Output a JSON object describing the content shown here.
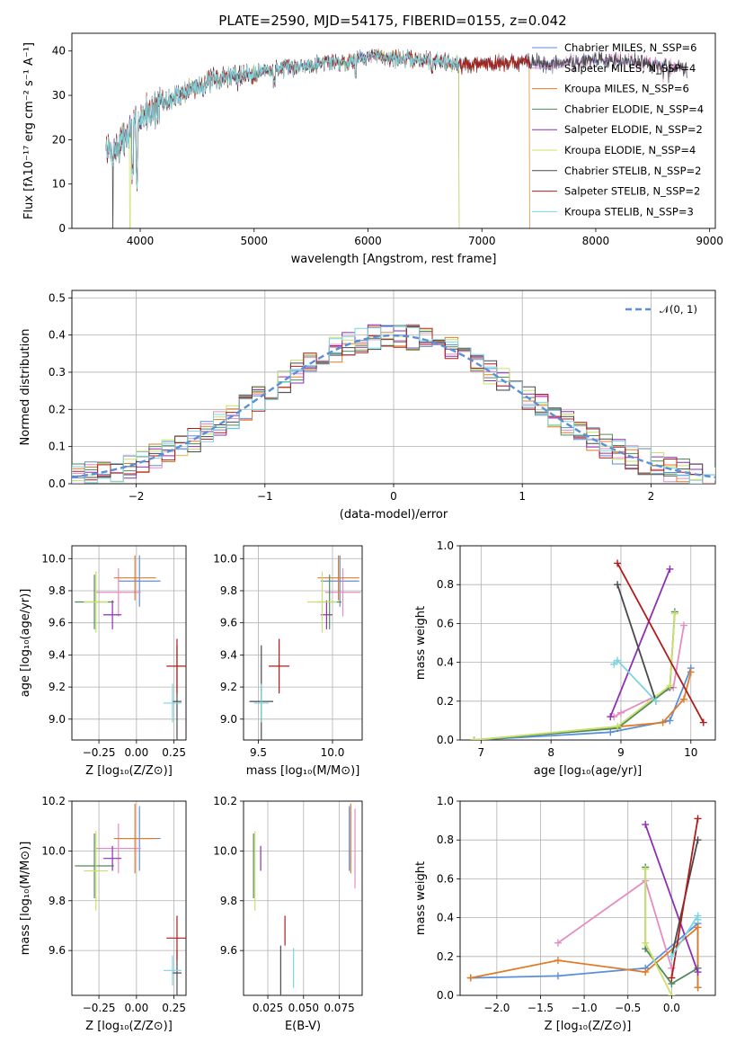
{
  "title": "PLATE=2590, MJD=54175, FIBERID=0155, z=0.042",
  "colors": {
    "chabrier_miles": "#5b8fd9",
    "salpeter_miles": "#e58cc4",
    "kroupa_miles": "#e07b28",
    "chabrier_elodie": "#4f8a5a",
    "salpeter_elodie": "#8e2fb5",
    "kroupa_elodie": "#c9e06a",
    "chabrier_stelib": "#4a4a4a",
    "salpeter_stelib": "#b01c1c",
    "kroupa_stelib": "#7ad6e0",
    "gaussian": "#5b8fd9",
    "grid": "#b0b0b0"
  },
  "chart_data": [
    {
      "id": "spectrum",
      "type": "line",
      "xlabel": "wavelength [Angstrom, rest frame]",
      "ylabel": "Flux [fλ10⁻¹⁷ erg cm⁻² s⁻¹ A⁻¹]",
      "xlim": [
        3400,
        9050
      ],
      "ylim": [
        0,
        44
      ],
      "xticks": [
        "4000",
        "5000",
        "6000",
        "7000",
        "8000",
        "9000"
      ],
      "yticks": [
        "0",
        "10",
        "20",
        "30",
        "40"
      ],
      "grid": false,
      "legend_position": "upper-right",
      "continuum": {
        "x": [
          3700,
          3760,
          3850,
          3950,
          4050,
          4200,
          4400,
          4600,
          4800,
          5000,
          5200,
          5400,
          5600,
          5800,
          6000,
          6200,
          6400,
          6600,
          6800,
          7000,
          7200,
          7400,
          7600,
          7800,
          8000,
          8200,
          8400,
          8600,
          8800
        ],
        "y": [
          18,
          17,
          20,
          23,
          26,
          28,
          31,
          33,
          34.5,
          35,
          36,
          36.5,
          37.5,
          37.5,
          39,
          38.5,
          38,
          38,
          37,
          37,
          37.5,
          37.5,
          37,
          37.5,
          38,
          38,
          37.5,
          36.5,
          36
        ]
      },
      "series": [
        {
          "name": "Chabrier MILES, N_SSP=6",
          "color_key": "chabrier_miles",
          "x_end": 8800,
          "dropouts": []
        },
        {
          "name": "Salpeter MILES, N_SSP=4",
          "color_key": "salpeter_miles",
          "x_end": 8800,
          "dropouts": []
        },
        {
          "name": "Kroupa MILES, N_SSP=6",
          "color_key": "kroupa_miles",
          "x_end": 7420,
          "dropouts": [
            7420
          ]
        },
        {
          "name": "Chabrier ELODIE, N_SSP=4",
          "color_key": "chabrier_elodie",
          "x_end": 6800,
          "dropouts": [
            6800
          ]
        },
        {
          "name": "Salpeter ELODIE, N_SSP=2",
          "color_key": "salpeter_elodie",
          "x_end": 6800,
          "dropouts": []
        },
        {
          "name": "Kroupa ELODIE, N_SSP=4",
          "color_key": "kroupa_elodie",
          "x_end": 6800,
          "dropouts": [
            3910,
            6800
          ]
        },
        {
          "name": "Chabrier STELIB, N_SSP=2",
          "color_key": "chabrier_stelib",
          "x_end": 8800,
          "dropouts": [
            3760
          ]
        },
        {
          "name": "Salpeter STELIB, N_SSP=2",
          "color_key": "salpeter_stelib",
          "x_end": 7420,
          "dropouts": []
        },
        {
          "name": "Kroupa STELIB, N_SSP=3",
          "color_key": "kroupa_stelib",
          "x_end": 6800,
          "dropouts": []
        }
      ]
    },
    {
      "id": "residuals",
      "type": "histogram",
      "xlabel": "(data-model)/error",
      "ylabel": "Normed distribution",
      "xlim": [
        -2.5,
        2.5
      ],
      "ylim": [
        0,
        0.52
      ],
      "xticks": [
        "−2",
        "−1",
        "0",
        "1",
        "2"
      ],
      "yticks": [
        "0.0",
        "0.1",
        "0.2",
        "0.3",
        "0.4",
        "0.5"
      ],
      "grid": true,
      "bin_width": 0.1,
      "gaussian_label": "𝒩(0, 1)",
      "gaussian": {
        "mean": 0,
        "sigma": 1
      }
    },
    {
      "id": "age_vs_Z",
      "type": "errorbar",
      "xlabel": "Z [log₁₀(Z/Z⊙)]",
      "ylabel": "age  [log₁₀(age/yr)]",
      "xlim": [
        -0.43,
        0.33
      ],
      "ylim": [
        8.87,
        10.08
      ],
      "xticks": [
        "−0.25",
        "0.00",
        "0.25"
      ],
      "xtick_values": [
        -0.25,
        0,
        0.25
      ],
      "yticks": [
        "9.0",
        "9.2",
        "9.4",
        "9.6",
        "9.8",
        "10.0"
      ],
      "ytick_values": [
        9.0,
        9.2,
        9.4,
        9.6,
        9.8,
        10.0
      ],
      "points": [
        {
          "key": "chabrier_miles",
          "x": 0.02,
          "xerr": 0.14,
          "y": 9.86,
          "yerr": 0.16
        },
        {
          "key": "salpeter_miles",
          "x": -0.12,
          "xerr": 0.15,
          "y": 9.79,
          "yerr": 0.15
        },
        {
          "key": "kroupa_miles",
          "x": -0.01,
          "xerr": 0.14,
          "y": 9.88,
          "yerr": 0.14
        },
        {
          "key": "chabrier_elodie",
          "x": -0.28,
          "xerr": 0.13,
          "y": 9.73,
          "yerr": 0.17
        },
        {
          "key": "salpeter_elodie",
          "x": -0.16,
          "xerr": 0.06,
          "y": 9.65,
          "yerr": 0.09
        },
        {
          "key": "kroupa_elodie",
          "x": -0.27,
          "xerr": 0.08,
          "y": 9.73,
          "yerr": 0.19
        },
        {
          "key": "chabrier_stelib",
          "x": 0.27,
          "xerr": 0.03,
          "y": 9.11,
          "yerr": 0.35
        },
        {
          "key": "salpeter_stelib",
          "x": 0.27,
          "xerr": 0.07,
          "y": 9.33,
          "yerr": 0.17
        },
        {
          "key": "kroupa_stelib",
          "x": 0.24,
          "xerr": 0.06,
          "y": 9.1,
          "yerr": 0.12
        }
      ]
    },
    {
      "id": "age_vs_mass",
      "type": "errorbar",
      "xlabel": "mass [log₁₀(M/M⊙)]",
      "xlim": [
        9.4,
        10.2
      ],
      "ylim": [
        8.87,
        10.08
      ],
      "xticks": [
        "9.5",
        "10.0"
      ],
      "xtick_values": [
        9.5,
        10.0
      ],
      "yticks": [
        "9.0",
        "9.2",
        "9.4",
        "9.6",
        "9.8",
        "10.0"
      ],
      "ytick_values": [
        9.0,
        9.2,
        9.4,
        9.6,
        9.8,
        10.0
      ],
      "points": [
        {
          "key": "chabrier_miles",
          "x": 10.05,
          "xerr": 0.13,
          "y": 9.86,
          "yerr": 0.16
        },
        {
          "key": "salpeter_miles",
          "x": 10.07,
          "xerr": 0.12,
          "y": 9.79,
          "yerr": 0.15
        },
        {
          "key": "kroupa_miles",
          "x": 10.04,
          "xerr": 0.14,
          "y": 9.88,
          "yerr": 0.14
        },
        {
          "key": "chabrier_elodie",
          "x": 9.98,
          "xerr": 0.08,
          "y": 9.73,
          "yerr": 0.17
        },
        {
          "key": "salpeter_elodie",
          "x": 9.96,
          "xerr": 0.04,
          "y": 9.65,
          "yerr": 0.09
        },
        {
          "key": "kroupa_elodie",
          "x": 9.93,
          "xerr": 0.1,
          "y": 9.73,
          "yerr": 0.19
        },
        {
          "key": "chabrier_stelib",
          "x": 9.52,
          "xerr": 0.08,
          "y": 9.11,
          "yerr": 0.35
        },
        {
          "key": "salpeter_stelib",
          "x": 9.64,
          "xerr": 0.07,
          "y": 9.33,
          "yerr": 0.17
        },
        {
          "key": "kroupa_stelib",
          "x": 9.52,
          "xerr": 0.05,
          "y": 9.1,
          "yerr": 0.12
        }
      ]
    },
    {
      "id": "weight_vs_age",
      "type": "line",
      "xlabel": "age  [log₁₀(age/yr)]",
      "ylabel": "mass weight",
      "xlim": [
        6.7,
        10.35
      ],
      "ylim": [
        0,
        1.0
      ],
      "xticks": [
        "7",
        "8",
        "9",
        "10"
      ],
      "xtick_values": [
        7,
        8,
        9,
        10
      ],
      "yticks": [
        "0.0",
        "0.2",
        "0.4",
        "0.6",
        "0.8",
        "1.0"
      ],
      "ytick_values": [
        0,
        0.2,
        0.4,
        0.6,
        0.8,
        1.0
      ],
      "grid": true,
      "series": [
        {
          "key": "chabrier_miles",
          "x": [
            6.9,
            8.85,
            9.7,
            10.0
          ],
          "y": [
            0.0,
            0.04,
            0.1,
            0.37
          ]
        },
        {
          "key": "salpeter_miles",
          "x": [
            8.9,
            9.0,
            9.75,
            9.9
          ],
          "y": [
            0.12,
            0.14,
            0.27,
            0.59
          ]
        },
        {
          "key": "kroupa_miles",
          "x": [
            6.9,
            9.6,
            9.9,
            10.0
          ],
          "y": [
            0.0,
            0.09,
            0.21,
            0.35
          ]
        },
        {
          "key": "chabrier_elodie",
          "x": [
            6.9,
            8.95,
            9.7,
            9.77
          ],
          "y": [
            0.0,
            0.06,
            0.27,
            0.66
          ]
        },
        {
          "key": "salpeter_elodie",
          "x": [
            8.85,
            9.7
          ],
          "y": [
            0.12,
            0.88
          ]
        },
        {
          "key": "kroupa_elodie",
          "x": [
            6.9,
            8.95,
            9.7,
            9.77
          ],
          "y": [
            0.0,
            0.07,
            0.28,
            0.65
          ]
        },
        {
          "key": "chabrier_stelib",
          "x": [
            8.95,
            9.5
          ],
          "y": [
            0.8,
            0.2
          ]
        },
        {
          "key": "salpeter_stelib",
          "x": [
            8.95,
            10.18
          ],
          "y": [
            0.91,
            0.09
          ]
        },
        {
          "key": "kroupa_stelib",
          "x": [
            8.9,
            8.95,
            9.5
          ],
          "y": [
            0.39,
            0.41,
            0.2
          ]
        }
      ]
    },
    {
      "id": "mass_vs_Z",
      "type": "errorbar",
      "xlabel": "Z [log₁₀(Z/Z⊙)]",
      "ylabel": "mass [log₁₀(M/M⊙)]",
      "xlim": [
        -0.43,
        0.33
      ],
      "ylim": [
        9.42,
        10.2
      ],
      "xticks": [
        "−0.25",
        "0.00",
        "0.25"
      ],
      "xtick_values": [
        -0.25,
        0,
        0.25
      ],
      "yticks": [
        "9.6",
        "9.8",
        "10.0",
        "10.2"
      ],
      "ytick_values": [
        9.6,
        9.8,
        10.0,
        10.2
      ],
      "points": [
        {
          "key": "chabrier_miles",
          "x": 0.02,
          "xerr": 0.14,
          "y": 10.05,
          "yerr": 0.13
        },
        {
          "key": "salpeter_miles",
          "x": -0.12,
          "xerr": 0.15,
          "y": 10.01,
          "yerr": 0.1
        },
        {
          "key": "kroupa_miles",
          "x": -0.01,
          "xerr": 0.14,
          "y": 10.05,
          "yerr": 0.14
        },
        {
          "key": "chabrier_elodie",
          "x": -0.28,
          "xerr": 0.13,
          "y": 9.94,
          "yerr": 0.13
        },
        {
          "key": "salpeter_elodie",
          "x": -0.16,
          "xerr": 0.06,
          "y": 9.97,
          "yerr": 0.05
        },
        {
          "key": "kroupa_elodie",
          "x": -0.27,
          "xerr": 0.08,
          "y": 9.92,
          "yerr": 0.16
        },
        {
          "key": "chabrier_stelib",
          "x": 0.27,
          "xerr": 0.03,
          "y": 9.51,
          "yerr": 0.09
        },
        {
          "key": "salpeter_stelib",
          "x": 0.27,
          "xerr": 0.07,
          "y": 9.65,
          "yerr": 0.09
        },
        {
          "key": "kroupa_stelib",
          "x": 0.24,
          "xerr": 0.06,
          "y": 9.52,
          "yerr": 0.06
        }
      ]
    },
    {
      "id": "mass_vs_ebv",
      "type": "errorbar",
      "xlabel": "E(B-V)",
      "xlim": [
        0.008,
        0.091
      ],
      "ylim": [
        9.42,
        10.2
      ],
      "xticks": [
        "0.025",
        "0.050",
        "0.075"
      ],
      "xtick_values": [
        0.025,
        0.05,
        0.075
      ],
      "yticks": [
        "9.6",
        "9.8",
        "10.0",
        "10.2"
      ],
      "ytick_values": [
        9.6,
        9.8,
        10.0,
        10.2
      ],
      "points": [
        {
          "key": "chabrier_miles",
          "x": 0.082,
          "xerr": 0,
          "y": 10.05,
          "yerr": 0.13
        },
        {
          "key": "salpeter_miles",
          "x": 0.086,
          "xerr": 0,
          "y": 10.01,
          "yerr": 0.16
        },
        {
          "key": "kroupa_miles",
          "x": 0.083,
          "xerr": 0,
          "y": 10.05,
          "yerr": 0.14
        },
        {
          "key": "chabrier_elodie",
          "x": 0.015,
          "xerr": 0,
          "y": 9.94,
          "yerr": 0.13
        },
        {
          "key": "salpeter_elodie",
          "x": 0.02,
          "xerr": 0,
          "y": 9.97,
          "yerr": 0.05
        },
        {
          "key": "kroupa_elodie",
          "x": 0.016,
          "xerr": 0,
          "y": 9.92,
          "yerr": 0.16
        },
        {
          "key": "chabrier_stelib",
          "x": 0.034,
          "xerr": 0,
          "y": 9.51,
          "yerr": 0.11
        },
        {
          "key": "salpeter_stelib",
          "x": 0.037,
          "xerr": 0,
          "y": 9.68,
          "yerr": 0.06
        },
        {
          "key": "kroupa_stelib",
          "x": 0.043,
          "xerr": 0,
          "y": 9.53,
          "yerr": 0.08
        }
      ]
    },
    {
      "id": "weight_vs_Z",
      "type": "line",
      "xlabel": "Z [log₁₀(Z/Z⊙)]",
      "ylabel": "mass weight",
      "xlim": [
        -2.42,
        0.5
      ],
      "ylim": [
        0,
        1.0
      ],
      "xticks": [
        "−2.0",
        "−1.5",
        "−1.0",
        "−0.5",
        "0.0"
      ],
      "xtick_values": [
        -2.0,
        -1.5,
        -1.0,
        -0.5,
        0.0
      ],
      "yticks": [
        "0.0",
        "0.2",
        "0.4",
        "0.6",
        "0.8",
        "1.0"
      ],
      "ytick_values": [
        0,
        0.2,
        0.4,
        0.6,
        0.8,
        1.0
      ],
      "grid": true,
      "series": [
        {
          "key": "chabrier_miles",
          "x": [
            -2.3,
            -1.3,
            -0.3,
            0.3,
            0.3
          ],
          "y": [
            0.09,
            0.1,
            0.14,
            0.37,
            0.04
          ]
        },
        {
          "key": "salpeter_miles",
          "x": [
            -1.3,
            -0.3,
            0.0
          ],
          "y": [
            0.27,
            0.59,
            0.14
          ]
        },
        {
          "key": "kroupa_miles",
          "x": [
            -2.3,
            -1.3,
            -0.3,
            0.3,
            0.3
          ],
          "y": [
            0.09,
            0.18,
            0.12,
            0.35,
            0.04
          ]
        },
        {
          "key": "chabrier_elodie",
          "x": [
            -0.3,
            -0.3,
            0.0,
            0.3
          ],
          "y": [
            0.66,
            0.24,
            0.06,
            0.14
          ]
        },
        {
          "key": "salpeter_elodie",
          "x": [
            -0.3,
            0.3
          ],
          "y": [
            0.88,
            0.12
          ]
        },
        {
          "key": "kroupa_elodie",
          "x": [
            -0.3,
            -0.3,
            0.0
          ],
          "y": [
            0.65,
            0.27,
            0.0
          ]
        },
        {
          "key": "chabrier_stelib",
          "x": [
            0.0,
            0.3
          ],
          "y": [
            0.2,
            0.8
          ]
        },
        {
          "key": "salpeter_stelib",
          "x": [
            0.0,
            0.3
          ],
          "y": [
            0.09,
            0.91
          ]
        },
        {
          "key": "kroupa_stelib",
          "x": [
            0.0,
            0.3,
            0.3
          ],
          "y": [
            0.2,
            0.41,
            0.39
          ]
        }
      ]
    }
  ]
}
